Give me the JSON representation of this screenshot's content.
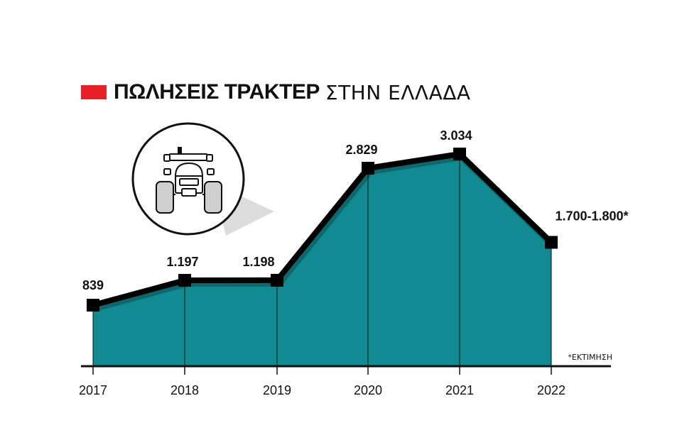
{
  "title": {
    "bold": "ΠΩΛΗΣΕΙΣ ΤΡΑΚΤΕΡ",
    "light": "ΣΤΗΝ ΕΛΛΑΔΑ",
    "swatch_color": "#e8202a"
  },
  "footnote": "*ΕΚΤΙΜΗΣΗ",
  "icon": "tractor-icon",
  "colors": {
    "area": "#118b91",
    "line": "#000000",
    "swatch": "#e8202a"
  },
  "chart_data": {
    "type": "area",
    "title": "ΠΩΛΗΣΕΙΣ ΤΡΑΚΤΕΡ ΣΤΗΝ ΕΛΛΑΔΑ",
    "categories": [
      "2017",
      "2018",
      "2019",
      "2020",
      "2021",
      "2022"
    ],
    "values": [
      839,
      1197,
      1198,
      2829,
      3034,
      1750
    ],
    "value_labels": [
      "839",
      "1.197",
      "1.198",
      "2.829",
      "3.034",
      "1.700-1.800*"
    ],
    "xlabel": "",
    "ylabel": "",
    "grid": false,
    "legend": "none"
  }
}
